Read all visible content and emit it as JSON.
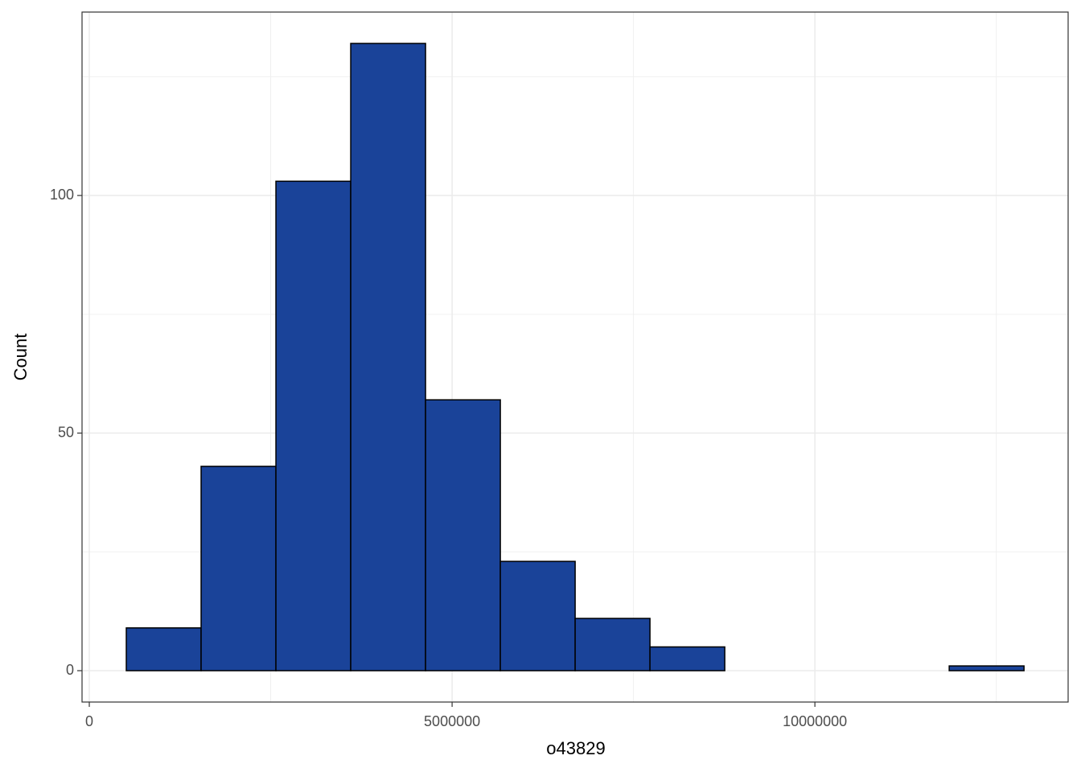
{
  "chart_data": {
    "type": "histogram",
    "x_label": "o43829",
    "y_label": "Count",
    "bins": [
      510000,
      1541000,
      2572000,
      3603000,
      4634000,
      5665000,
      6696000,
      7727000,
      8758000,
      9789000,
      10820000,
      11851000,
      12882000
    ],
    "values": [
      9,
      43,
      103,
      132,
      57,
      23,
      11,
      5,
      0,
      0,
      0,
      1
    ],
    "color": "#1a4399",
    "edgecolor": "#000000",
    "xlim": [
      -100000,
      13490000
    ],
    "ylim": [
      -6.6,
      138.6
    ],
    "xticks": [
      0,
      5000000,
      10000000
    ],
    "yticks": [
      0,
      50,
      100
    ],
    "grid": true
  }
}
